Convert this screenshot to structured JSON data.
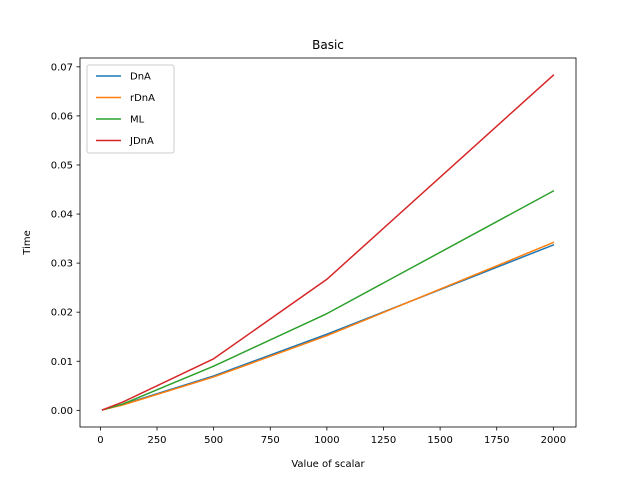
{
  "chart_data": {
    "type": "line",
    "title": "Basic",
    "xlabel": "Value of scalar",
    "ylabel": "Time",
    "xlim": [
      -90,
      2100
    ],
    "ylim": [
      -0.0034,
      0.0718
    ],
    "xticks": [
      {
        "value": 0,
        "label": "0"
      },
      {
        "value": 250,
        "label": "250"
      },
      {
        "value": 500,
        "label": "500"
      },
      {
        "value": 750,
        "label": "750"
      },
      {
        "value": 1000,
        "label": "1000"
      },
      {
        "value": 1250,
        "label": "1250"
      },
      {
        "value": 1500,
        "label": "1500"
      },
      {
        "value": 1750,
        "label": "1750"
      },
      {
        "value": 2000,
        "label": "2000"
      }
    ],
    "yticks": [
      {
        "value": 0.0,
        "label": "0.00"
      },
      {
        "value": 0.01,
        "label": "0.01"
      },
      {
        "value": 0.02,
        "label": "0.02"
      },
      {
        "value": 0.03,
        "label": "0.03"
      },
      {
        "value": 0.04,
        "label": "0.04"
      },
      {
        "value": 0.05,
        "label": "0.05"
      },
      {
        "value": 0.06,
        "label": "0.06"
      },
      {
        "value": 0.07,
        "label": "0.07"
      }
    ],
    "grid": false,
    "legend_position": "top-left",
    "x": [
      10,
      100,
      500,
      1000,
      2000
    ],
    "series": [
      {
        "name": "DnA",
        "color": "#1f77b4",
        "values": [
          0.0001,
          0.0012,
          0.007,
          0.0155,
          0.0337
        ]
      },
      {
        "name": "rDnA",
        "color": "#ff7f0e",
        "values": [
          0.0001,
          0.0011,
          0.0068,
          0.0152,
          0.0342
        ]
      },
      {
        "name": "ML",
        "color": "#2ca02c",
        "values": [
          0.0001,
          0.0013,
          0.009,
          0.0197,
          0.0447
        ]
      },
      {
        "name": "JDnA",
        "color": "#d62728",
        "values": [
          0.0001,
          0.0017,
          0.0105,
          0.0267,
          0.0683
        ]
      }
    ]
  }
}
